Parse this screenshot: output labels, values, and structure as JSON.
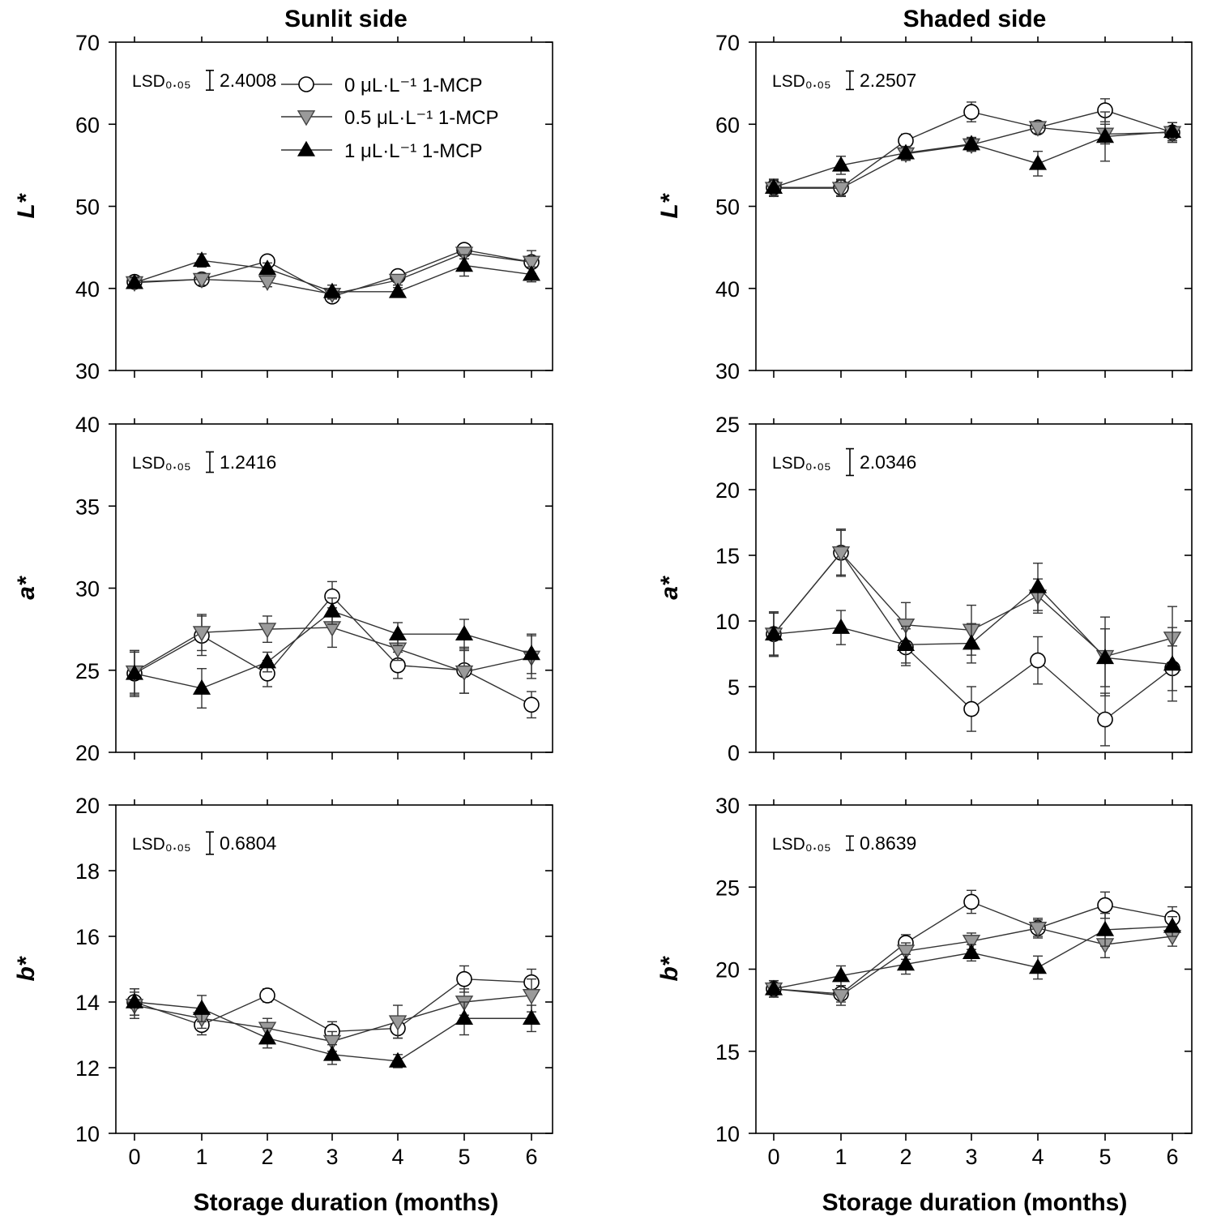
{
  "column_titles": [
    "Sunlit side",
    "Shaded side"
  ],
  "x_axis_label": "Storage duration (months)",
  "legend": [
    "0 μL·L⁻¹ 1-MCP",
    "0.5 μL·L⁻¹ 1-MCP",
    "1 μL·L⁻¹ 1-MCP"
  ],
  "lsd_label": "LSD₀.₀₅",
  "colors": {
    "axis": "#000000",
    "line": "#333333",
    "open": "#ffffff",
    "gray": "#9a9a9a",
    "black": "#000000"
  },
  "chart_data": [
    {
      "type": "line",
      "column": "Sunlit side",
      "ylabel": "L*",
      "ylim": [
        30,
        70
      ],
      "yticks": [
        30,
        40,
        50,
        60,
        70
      ],
      "x": [
        0,
        1,
        2,
        3,
        4,
        5,
        6
      ],
      "lsd": 2.4008,
      "lsd_text": "2.4008",
      "series": [
        {
          "name": "0 μL·L⁻¹ 1-MCP",
          "marker": "circle",
          "values": [
            40.8,
            41.1,
            43.3,
            39.0,
            41.5,
            44.7,
            43.2
          ],
          "err": [
            0.6,
            0.6,
            0.5,
            0.6,
            0.6,
            0.6,
            0.7
          ]
        },
        {
          "name": "0.5 μL·L⁻¹ 1-MCP",
          "marker": "triangle-down",
          "values": [
            40.7,
            41.1,
            40.8,
            39.3,
            41.0,
            44.3,
            43.2
          ],
          "err": [
            0.6,
            0.7,
            0.6,
            0.6,
            0.6,
            0.7,
            1.4
          ]
        },
        {
          "name": "1 μL·L⁻¹ 1-MCP",
          "marker": "triangle-up",
          "values": [
            40.7,
            43.4,
            42.4,
            39.6,
            39.6,
            42.8,
            41.7
          ],
          "err": [
            0.6,
            0.8,
            0.7,
            0.8,
            0.5,
            1.3,
            0.9
          ]
        }
      ]
    },
    {
      "type": "line",
      "column": "Shaded side",
      "ylabel": "L*",
      "ylim": [
        30,
        70
      ],
      "yticks": [
        30,
        40,
        50,
        60,
        70
      ],
      "x": [
        0,
        1,
        2,
        3,
        4,
        5,
        6
      ],
      "lsd": 2.2507,
      "lsd_text": "2.2507",
      "series": [
        {
          "name": "0 μL·L⁻¹ 1-MCP",
          "marker": "circle",
          "values": [
            52.3,
            52.3,
            58.0,
            61.5,
            59.6,
            61.7,
            59.0
          ],
          "err": [
            1.0,
            1.0,
            0.8,
            1.2,
            0.7,
            1.4,
            1.2
          ]
        },
        {
          "name": "0.5 μL·L⁻¹ 1-MCP",
          "marker": "triangle-down",
          "values": [
            52.2,
            52.2,
            56.4,
            57.5,
            59.6,
            58.8,
            59.0
          ],
          "err": [
            1.0,
            1.0,
            0.8,
            0.8,
            0.7,
            1.2,
            1.2
          ]
        },
        {
          "name": "1 μL·L⁻¹ 1-MCP",
          "marker": "triangle-up",
          "values": [
            52.3,
            55.0,
            56.5,
            57.6,
            55.2,
            58.5,
            59.1
          ],
          "err": [
            1.0,
            1.1,
            0.8,
            0.8,
            1.5,
            3.0,
            1.1
          ]
        }
      ]
    },
    {
      "type": "line",
      "column": "Sunlit side",
      "ylabel": "a*",
      "ylim": [
        20,
        40
      ],
      "yticks": [
        20,
        25,
        30,
        35,
        40
      ],
      "x": [
        0,
        1,
        2,
        3,
        4,
        5,
        6
      ],
      "lsd": 1.2416,
      "lsd_text": "1.2416",
      "series": [
        {
          "name": "0 μL·L⁻¹ 1-MCP",
          "marker": "circle",
          "values": [
            24.8,
            27.1,
            24.8,
            29.5,
            25.3,
            25.0,
            22.9
          ],
          "err": [
            1.4,
            1.2,
            0.8,
            0.9,
            0.8,
            1.4,
            0.8
          ]
        },
        {
          "name": "0.5 μL·L⁻¹ 1-MCP",
          "marker": "triangle-down",
          "values": [
            24.9,
            27.3,
            27.5,
            27.6,
            26.3,
            24.9,
            25.8
          ],
          "err": [
            1.3,
            1.1,
            0.8,
            1.2,
            0.7,
            1.3,
            1.3
          ]
        },
        {
          "name": "1 μL·L⁻¹ 1-MCP",
          "marker": "triangle-up",
          "values": [
            24.8,
            23.9,
            25.5,
            28.6,
            27.2,
            27.2,
            26.0
          ],
          "err": [
            1.3,
            1.2,
            0.6,
            0.8,
            0.7,
            0.9,
            1.2
          ]
        }
      ]
    },
    {
      "type": "line",
      "column": "Shaded side",
      "ylabel": "a*",
      "ylim": [
        0,
        25
      ],
      "yticks": [
        0,
        5,
        10,
        15,
        20,
        25
      ],
      "x": [
        0,
        1,
        2,
        3,
        4,
        5,
        6
      ],
      "lsd": 2.0346,
      "lsd_text": "2.0346",
      "series": [
        {
          "name": "0 μL·L⁻¹ 1-MCP",
          "marker": "circle",
          "values": [
            9.0,
            15.2,
            8.0,
            3.3,
            7.0,
            2.5,
            6.4
          ],
          "err": [
            1.7,
            1.8,
            1.4,
            1.7,
            1.8,
            2.0,
            1.7
          ]
        },
        {
          "name": "0.5 μL·L⁻¹ 1-MCP",
          "marker": "triangle-down",
          "values": [
            9.0,
            15.2,
            9.7,
            9.3,
            11.9,
            7.3,
            8.7
          ],
          "err": [
            1.6,
            1.7,
            1.7,
            1.9,
            1.3,
            3.0,
            2.4
          ]
        },
        {
          "name": "1 μL·L⁻¹ 1-MCP",
          "marker": "triangle-up",
          "values": [
            9.0,
            9.5,
            8.2,
            8.3,
            12.6,
            7.2,
            6.7
          ],
          "err": [
            1.6,
            1.3,
            1.4,
            1.5,
            1.8,
            2.2,
            2.8
          ]
        }
      ]
    },
    {
      "type": "line",
      "column": "Sunlit side",
      "ylabel": "b*",
      "ylim": [
        10,
        20
      ],
      "yticks": [
        10,
        12,
        14,
        16,
        18,
        20
      ],
      "x": [
        0,
        1,
        2,
        3,
        4,
        5,
        6
      ],
      "lsd": 0.6804,
      "lsd_text": "0.6804",
      "series": [
        {
          "name": "0 μL·L⁻¹ 1-MCP",
          "marker": "circle",
          "values": [
            14.0,
            13.3,
            14.2,
            13.1,
            13.2,
            14.7,
            14.6
          ],
          "err": [
            0.4,
            0.3,
            0.2,
            0.3,
            0.3,
            0.4,
            0.4
          ]
        },
        {
          "name": "0.5 μL·L⁻¹ 1-MCP",
          "marker": "triangle-down",
          "values": [
            13.9,
            13.5,
            13.2,
            12.8,
            13.4,
            14.0,
            14.2
          ],
          "err": [
            0.4,
            0.3,
            0.3,
            0.3,
            0.5,
            0.4,
            0.5
          ]
        },
        {
          "name": "1 μL·L⁻¹ 1-MCP",
          "marker": "triangle-up",
          "values": [
            14.0,
            13.8,
            12.9,
            12.4,
            12.2,
            13.5,
            13.5
          ],
          "err": [
            0.4,
            0.4,
            0.3,
            0.3,
            0.2,
            0.5,
            0.4
          ]
        }
      ]
    },
    {
      "type": "line",
      "column": "Shaded side",
      "ylabel": "b*",
      "ylim": [
        10,
        30
      ],
      "yticks": [
        10,
        15,
        20,
        25,
        30
      ],
      "x": [
        0,
        1,
        2,
        3,
        4,
        5,
        6
      ],
      "lsd": 0.8639,
      "lsd_text": "0.8639",
      "series": [
        {
          "name": "0 μL·L⁻¹ 1-MCP",
          "marker": "circle",
          "values": [
            18.8,
            18.5,
            21.6,
            24.1,
            22.5,
            23.9,
            23.1
          ],
          "err": [
            0.5,
            0.5,
            0.5,
            0.7,
            0.6,
            0.8,
            0.7
          ]
        },
        {
          "name": "0.5 μL·L⁻¹ 1-MCP",
          "marker": "triangle-down",
          "values": [
            18.8,
            18.4,
            21.1,
            21.7,
            22.5,
            21.5,
            22.0
          ],
          "err": [
            0.5,
            0.6,
            0.5,
            0.5,
            0.5,
            0.8,
            0.6
          ]
        },
        {
          "name": "1 μL·L⁻¹ 1-MCP",
          "marker": "triangle-up",
          "values": [
            18.8,
            19.6,
            20.3,
            21.0,
            20.1,
            22.4,
            22.6
          ],
          "err": [
            0.5,
            0.6,
            0.6,
            0.5,
            0.7,
            1.0,
            0.6
          ]
        }
      ]
    }
  ]
}
